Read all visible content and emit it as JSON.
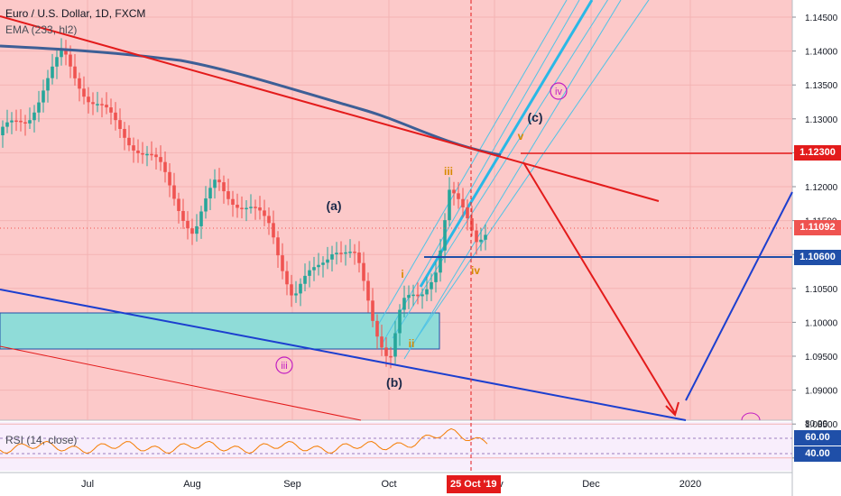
{
  "header": {
    "title": "Euro / U.S. Dollar, 1D, FXCM",
    "ema_label": "EMA (233, hl2)",
    "rsi_label": "RSI (14, close)"
  },
  "chart_data": {
    "type": "candlestick",
    "title": "Euro / U.S. Dollar, 1D, FXCM",
    "price_axis": {
      "ticks": [
        "1.14500",
        "1.14000",
        "1.13500",
        "1.13000",
        "1.12500",
        "1.12000",
        "1.11500",
        "1.11000",
        "1.10500",
        "1.10000",
        "1.09500",
        "1.09000",
        "1.08500",
        "1.08000"
      ],
      "ylim": [
        1.0792,
        1.1472
      ]
    },
    "time_axis": {
      "ticks": [
        "Jul",
        "Aug",
        "Sep",
        "Oct",
        "Nov",
        "Dec",
        "2020"
      ],
      "highlight": "25 Oct '19"
    },
    "price_tags": [
      {
        "value": "1.12300",
        "color": "#e31b1b"
      },
      {
        "value": "1.11092",
        "color": "#ef5350"
      },
      {
        "value": "1.10600",
        "color": "#1f4fa8"
      }
    ],
    "rsi": {
      "ticks": [
        "60.00",
        "40.00"
      ],
      "label_top": "80.00",
      "tag_color": "#1f4fa8"
    },
    "wave_labels": [
      {
        "text": "(a)",
        "color": "#1c2a4a"
      },
      {
        "text": "(b)",
        "color": "#1c2a4a"
      },
      {
        "text": "(c)",
        "color": "#1c2a4a"
      },
      {
        "text": "iii",
        "color": "#c21fc2",
        "circled": true
      },
      {
        "text": "iv",
        "color": "#c21fc2",
        "circled": true
      },
      {
        "text": "i",
        "color": "#d68a00"
      },
      {
        "text": "ii",
        "color": "#d68a00"
      },
      {
        "text": "iii",
        "color": "#d68a00"
      },
      {
        "text": "iv",
        "color": "#d68a00"
      },
      {
        "text": "v",
        "color": "#d68a00"
      }
    ],
    "colors": {
      "background": "#fcc9c9",
      "up": "#26a69a",
      "down": "#ef5350",
      "ema": "#3d5f96",
      "trendline_red": "#e31b1b",
      "trendline_blue": "#1c3fcf",
      "channel": "#4fc3e6",
      "zone": "#8fdcd8",
      "rsi_bg": "#f3e5f5",
      "rsi_line": "#f57c00"
    }
  }
}
